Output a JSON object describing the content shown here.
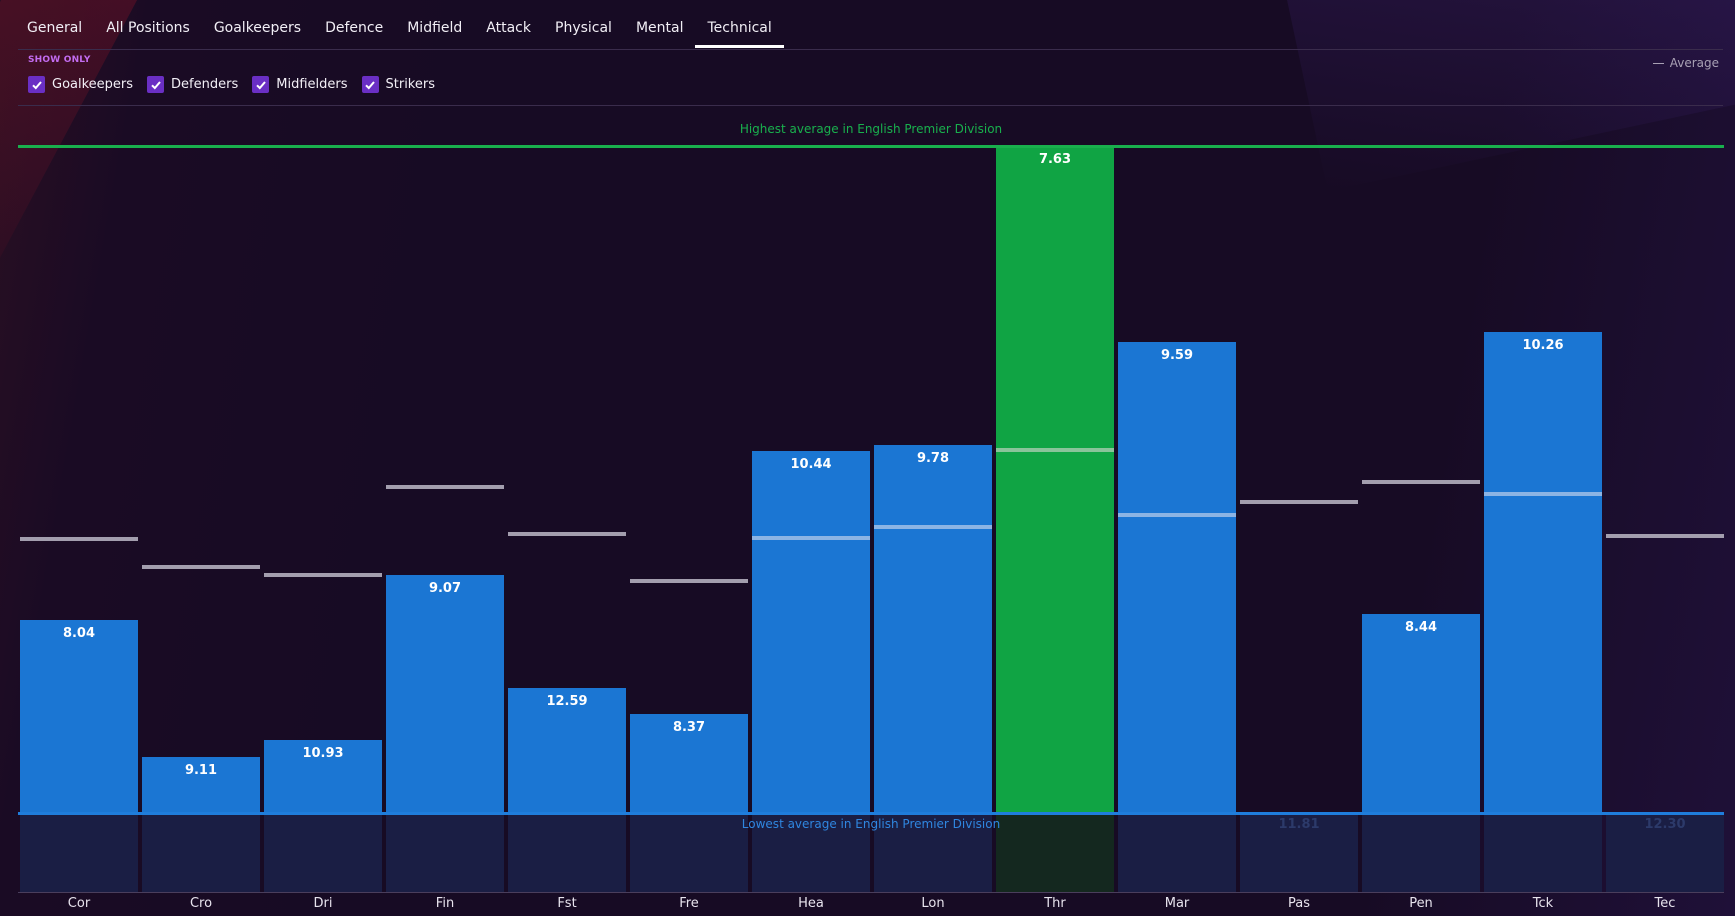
{
  "tabs": [
    {
      "label": "General",
      "active": false
    },
    {
      "label": "All Positions",
      "active": false
    },
    {
      "label": "Goalkeepers",
      "active": false
    },
    {
      "label": "Defence",
      "active": false
    },
    {
      "label": "Midfield",
      "active": false
    },
    {
      "label": "Attack",
      "active": false
    },
    {
      "label": "Physical",
      "active": false
    },
    {
      "label": "Mental",
      "active": false
    },
    {
      "label": "Technical",
      "active": true
    }
  ],
  "filters": {
    "title": "SHOW ONLY",
    "items": [
      {
        "label": "Goalkeepers",
        "checked": true
      },
      {
        "label": "Defenders",
        "checked": true
      },
      {
        "label": "Midfielders",
        "checked": true
      },
      {
        "label": "Strikers",
        "checked": true
      }
    ]
  },
  "legend": {
    "average_label": "Average"
  },
  "colors": {
    "bar": "#1b76d3",
    "highlight_bar": "#10a444",
    "highest_line": "#19b04d",
    "lowest_line": "#1f7ddc",
    "accent": "#6a2fc4"
  },
  "chart_data": {
    "type": "bar",
    "highest_label": "Highest average in English Premier Division",
    "lowest_label": "Lowest average in English Premier Division",
    "categories": [
      "Cor",
      "Cro",
      "Dri",
      "Fin",
      "Fst",
      "Fre",
      "Hea",
      "Lon",
      "Thr",
      "Mar",
      "Pas",
      "Pen",
      "Tck",
      "Tec"
    ],
    "values": [
      "8.04",
      "9.11",
      "10.93",
      "9.07",
      "12.59",
      "8.37",
      "10.44",
      "9.78",
      "7.63",
      "9.59",
      "11.81",
      "8.44",
      "10.26",
      "12.30"
    ],
    "relative_level": [
      0.289,
      0.083,
      0.108,
      0.356,
      0.186,
      0.147,
      0.542,
      0.551,
      1.0,
      0.706,
      0.0,
      0.298,
      0.72,
      0.0
    ],
    "average_level": [
      0.41,
      0.368,
      0.356,
      0.488,
      0.417,
      0.347,
      0.412,
      0.428,
      0.544,
      0.446,
      0.465,
      0.496,
      0.477,
      0.415
    ],
    "highlighted_index": 8
  }
}
